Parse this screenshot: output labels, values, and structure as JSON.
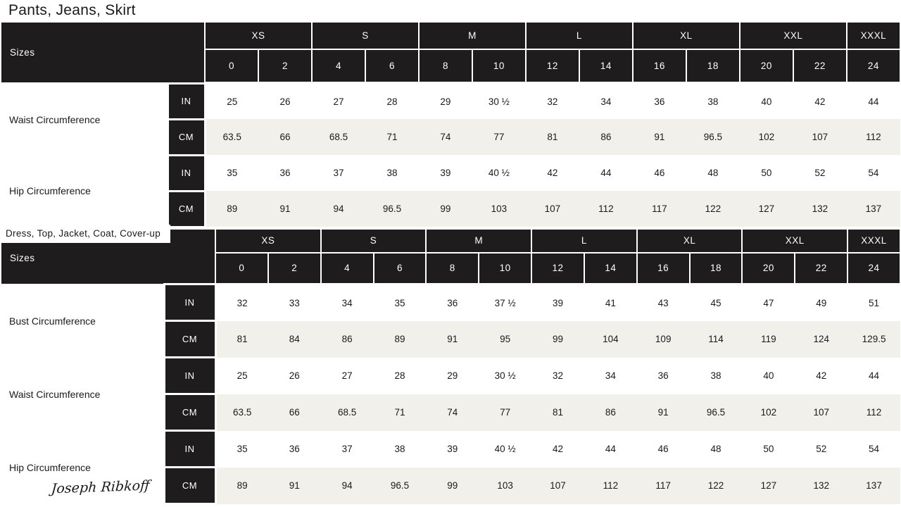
{
  "colors": {
    "header_bg": "#1e1c1c",
    "header_text": "#ffffff",
    "alt_row_bg": "#f1f0eb",
    "body_text": "#1a1a1a",
    "page_bg": "#ffffff"
  },
  "brand": {
    "logo_text": "Joseph Ribkoff"
  },
  "size_groups": [
    {
      "label": "XS",
      "span": 2
    },
    {
      "label": "S",
      "span": 2
    },
    {
      "label": "M",
      "span": 2
    },
    {
      "label": "L",
      "span": 2
    },
    {
      "label": "XL",
      "span": 2
    },
    {
      "label": "XXL",
      "span": 2
    },
    {
      "label": "XXXL",
      "span": 1
    }
  ],
  "size_numbers": [
    "0",
    "2",
    "4",
    "6",
    "8",
    "10",
    "12",
    "14",
    "16",
    "18",
    "20",
    "22",
    "24"
  ],
  "tables": [
    {
      "title": "Pants, Jeans, Skirt",
      "sizes_label": "Sizes",
      "rows": [
        {
          "label": "Waist Circumference",
          "units": [
            {
              "unit": "IN",
              "values": [
                "25",
                "26",
                "27",
                "28",
                "29",
                "30 ½",
                "32",
                "34",
                "36",
                "38",
                "40",
                "42",
                "44"
              ]
            },
            {
              "unit": "CM",
              "values": [
                "63.5",
                "66",
                "68.5",
                "71",
                "74",
                "77",
                "81",
                "86",
                "91",
                "96.5",
                "102",
                "107",
                "112"
              ]
            }
          ]
        },
        {
          "label": "Hip Circumference",
          "units": [
            {
              "unit": "IN",
              "values": [
                "35",
                "36",
                "37",
                "38",
                "39",
                "40 ½",
                "42",
                "44",
                "46",
                "48",
                "50",
                "52",
                "54"
              ]
            },
            {
              "unit": "CM",
              "values": [
                "89",
                "91",
                "94",
                "96.5",
                "99",
                "103",
                "107",
                "112",
                "117",
                "122",
                "127",
                "132",
                "137"
              ]
            }
          ]
        }
      ]
    },
    {
      "title": "Dress, Top, Jacket, Coat, Cover-up",
      "sizes_label": "Sizes",
      "rows": [
        {
          "label": "Bust Circumference",
          "units": [
            {
              "unit": "IN",
              "values": [
                "32",
                "33",
                "34",
                "35",
                "36",
                "37 ½",
                "39",
                "41",
                "43",
                "45",
                "47",
                "49",
                "51"
              ]
            },
            {
              "unit": "CM",
              "values": [
                "81",
                "84",
                "86",
                "89",
                "91",
                "95",
                "99",
                "104",
                "109",
                "114",
                "119",
                "124",
                "129.5"
              ]
            }
          ]
        },
        {
          "label": "Waist Circumference",
          "units": [
            {
              "unit": "IN",
              "values": [
                "25",
                "26",
                "27",
                "28",
                "29",
                "30 ½",
                "32",
                "34",
                "36",
                "38",
                "40",
                "42",
                "44"
              ]
            },
            {
              "unit": "CM",
              "values": [
                "63.5",
                "66",
                "68.5",
                "71",
                "74",
                "77",
                "81",
                "86",
                "91",
                "96.5",
                "102",
                "107",
                "112"
              ]
            }
          ]
        },
        {
          "label": "Hip Circumference",
          "units": [
            {
              "unit": "IN",
              "values": [
                "35",
                "36",
                "37",
                "38",
                "39",
                "40 ½",
                "42",
                "44",
                "46",
                "48",
                "50",
                "52",
                "54"
              ]
            },
            {
              "unit": "CM",
              "values": [
                "89",
                "91",
                "94",
                "96.5",
                "99",
                "103",
                "107",
                "112",
                "117",
                "122",
                "127",
                "132",
                "137"
              ]
            }
          ]
        }
      ]
    }
  ]
}
